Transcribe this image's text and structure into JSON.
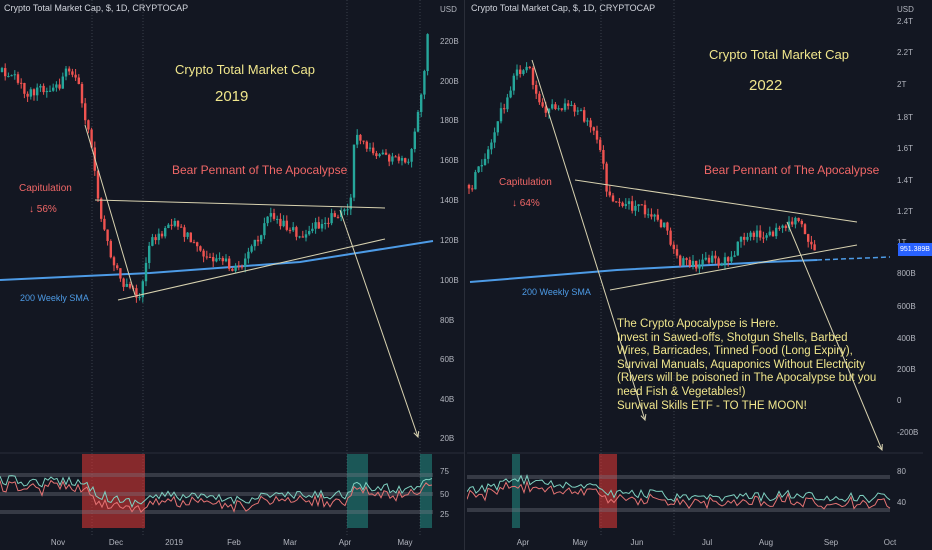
{
  "left": {
    "header": "Crypto Total Market Cap, $, 1D, CRYPTOCAP",
    "title": "Crypto Total Market Cap",
    "year": "2019",
    "pattern_label": "Bear Pennant of The Apocalypse",
    "capitulation_label": "Capitulation",
    "capitulation_pct": "↓ 56%",
    "sma_label": "200 Weekly SMA",
    "y_ticks": [
      "USD",
      "220B",
      "200B",
      "180B",
      "160B",
      "140B",
      "120B",
      "100B",
      "80B",
      "60B",
      "40B",
      "20B"
    ],
    "x_ticks": [
      "Nov",
      "Dec",
      "2019",
      "Feb",
      "Mar",
      "Apr",
      "May"
    ],
    "osc_ticks": [
      "75",
      "50",
      "25"
    ]
  },
  "right": {
    "header": "Crypto Total Market Cap, $, 1D, CRYPTOCAP",
    "title": "Crypto Total Market Cap",
    "year": "2022",
    "pattern_label": "Bear Pennant of The Apocalypse",
    "capitulation_label": "Capitulation",
    "capitulation_pct": "↓ 64%",
    "sma_label": "200 Weekly SMA",
    "y_ticks": [
      "USD",
      "2.4T",
      "2.2T",
      "2T",
      "1.8T",
      "1.6T",
      "1.4T",
      "1.2T",
      "1T",
      "800B",
      "600B",
      "400B",
      "200B",
      "0",
      "-200B"
    ],
    "price_tag": "951.389B",
    "x_ticks": [
      "Apr",
      "May",
      "Jun",
      "Jul",
      "Aug",
      "Sep",
      "Oct"
    ],
    "osc_ticks": [
      "80",
      "40"
    ],
    "note": [
      "The Crypto Apocalypse is Here.",
      "Invest in Sawed-offs, Shotgun Shells, Barbed",
      "Wires, Barricades, Tinned Food (Long Expiry),",
      "Survival Manuals, Aquaponics Without Electricity",
      "(Rivers will be poisoned in The Apocalypse but you",
      "need Fish & Vegetables!)",
      "Survival Skills ETF - TO THE MOON!"
    ]
  },
  "colors": {
    "background": "#131722",
    "up": "#26a69a",
    "down": "#ef5350",
    "sma": "#4d9be6",
    "text_yellow": "#f0e68c",
    "red_text": "#f06767"
  },
  "chart_data": [
    {
      "type": "candlestick",
      "title": "Crypto Total Market Cap",
      "subtitle": "2019",
      "ylabel": "USD",
      "ylim": [
        10,
        230
      ],
      "y_unit": "B",
      "x_ticks": [
        "Nov",
        "Dec",
        "2019",
        "Feb",
        "Mar",
        "Apr",
        "May"
      ],
      "close_path": [
        {
          "t": "Oct",
          "v": 208
        },
        {
          "t": "Nov",
          "v": 206
        },
        {
          "t": "Nov",
          "v": 170
        },
        {
          "t": "Nov",
          "v": 135
        },
        {
          "t": "Dec",
          "v": 108
        },
        {
          "t": "Dec",
          "v": 92
        },
        {
          "t": "Dec",
          "v": 128
        },
        {
          "t": "2019",
          "v": 125
        },
        {
          "t": "Feb",
          "v": 113
        },
        {
          "t": "Feb",
          "v": 115
        },
        {
          "t": "Mar",
          "v": 128
        },
        {
          "t": "Mar",
          "v": 130
        },
        {
          "t": "Apr",
          "v": 138
        },
        {
          "t": "Apr",
          "v": 170
        },
        {
          "t": "Apr",
          "v": 160
        },
        {
          "t": "May",
          "v": 170
        },
        {
          "t": "May",
          "v": 240
        }
      ],
      "sma_200w": [
        {
          "t": "Oct",
          "v": 99
        },
        {
          "t": "May",
          "v": 121
        }
      ],
      "oscillator_ticks": [
        75,
        50,
        25
      ]
    },
    {
      "type": "candlestick",
      "title": "Crypto Total Market Cap",
      "subtitle": "2022",
      "ylabel": "USD",
      "ylim": [
        -300,
        2450
      ],
      "y_unit": "B",
      "last_price": "951.389B",
      "x_ticks": [
        "Apr",
        "May",
        "Jun",
        "Jul",
        "Aug",
        "Sep",
        "Oct"
      ],
      "close_path": [
        {
          "t": "Mar",
          "v": 1750
        },
        {
          "t": "Apr",
          "v": 2100
        },
        {
          "t": "Apr",
          "v": 1880
        },
        {
          "t": "May",
          "v": 1750
        },
        {
          "t": "May",
          "v": 1300
        },
        {
          "t": "Jun",
          "v": 1250
        },
        {
          "t": "Jun",
          "v": 880
        },
        {
          "t": "Jul",
          "v": 930
        },
        {
          "t": "Aug",
          "v": 1080
        },
        {
          "t": "Aug",
          "v": 1150
        },
        {
          "t": "Aug",
          "v": 951
        }
      ],
      "sma_200w": [
        {
          "t": "Mar",
          "v": 830
        },
        {
          "t": "Sep",
          "v": 950
        }
      ],
      "oscillator_ticks": [
        80,
        40
      ]
    }
  ]
}
